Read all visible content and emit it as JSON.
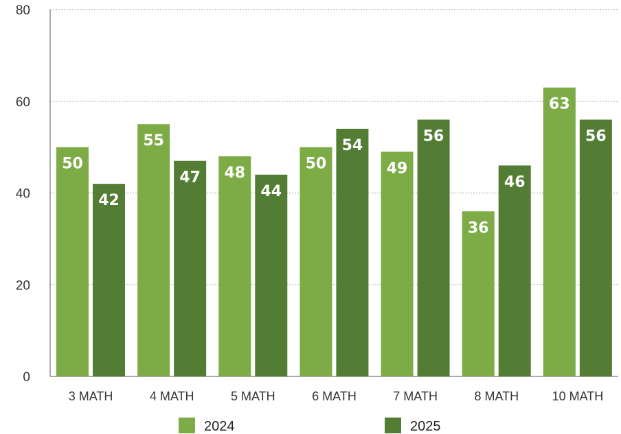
{
  "chart_data": {
    "type": "bar",
    "categories": [
      "3 MATH",
      "4 MATH",
      "5 MATH",
      "6 MATH",
      "7 MATH",
      "8 MATH",
      "10 MATH"
    ],
    "series": [
      {
        "name": "2024",
        "color": "#7dab45",
        "values": [
          50,
          55,
          48,
          50,
          49,
          36,
          63
        ]
      },
      {
        "name": "2025",
        "color": "#537d34",
        "values": [
          42,
          47,
          44,
          54,
          56,
          46,
          56
        ]
      }
    ],
    "yticks": [
      0,
      20,
      40,
      60,
      80
    ],
    "ylim": [
      0,
      80
    ],
    "grid": true,
    "legend": "bottom",
    "title": "",
    "xlabel": "",
    "ylabel": ""
  }
}
